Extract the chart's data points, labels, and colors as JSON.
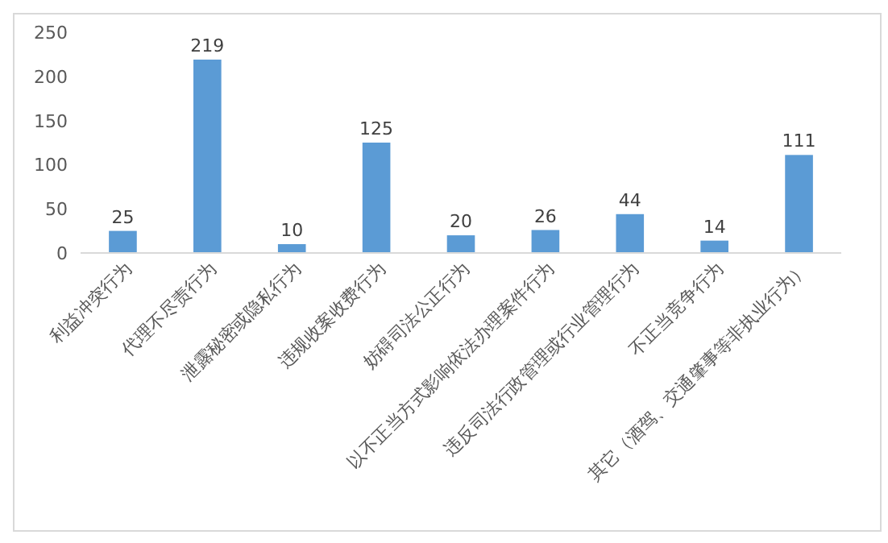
{
  "chart_data": {
    "type": "bar",
    "categories": [
      "利益冲突行为",
      "代理不尽责行为",
      "泄露秘密或隐私行为",
      "违规收案收费行为",
      "妨碍司法公正行为",
      "以不正当方式影响依法办理案件行为",
      "违反司法行政管理或行业管理行为",
      "不正当竞争行为",
      "其它（酒驾、交通肇事等非执业行为）"
    ],
    "values": [
      25,
      219,
      10,
      125,
      20,
      26,
      44,
      14,
      111
    ],
    "color": "#5b9bd5",
    "data_labels": true,
    "ylim": [
      0,
      250
    ],
    "yticks": [
      0,
      50,
      100,
      150,
      200,
      250
    ],
    "grid": false
  }
}
